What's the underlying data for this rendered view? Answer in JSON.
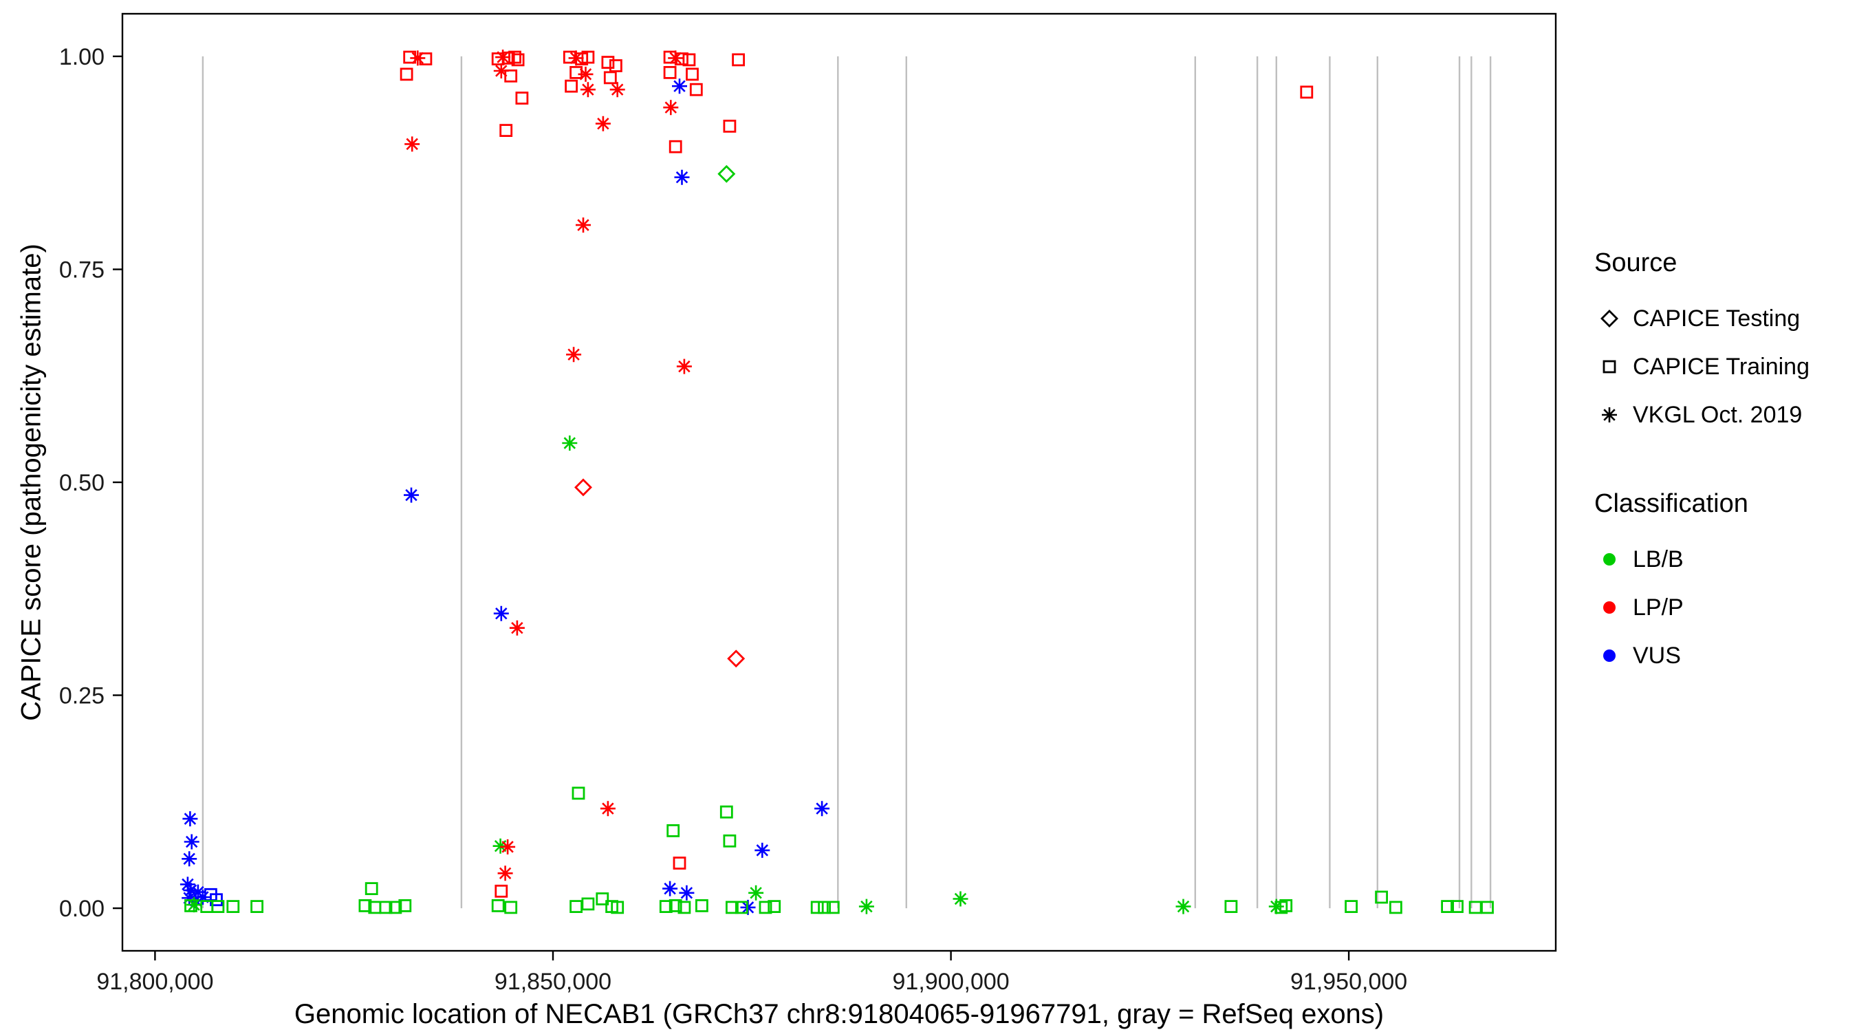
{
  "chart_data": {
    "type": "scatter",
    "title": "",
    "xlabel": "Genomic location of NECAB1 (GRCh37 chr8:91804065-91967791, gray = RefSeq exons)",
    "ylabel": "CAPICE score (pathogenicity estimate)",
    "xlim": [
      91795900,
      91976000
    ],
    "ylim": [
      -0.05,
      1.05
    ],
    "grid": false,
    "legend_position": "right",
    "xticks": [
      {
        "value": 91800000,
        "label": "91,800,000"
      },
      {
        "value": 91850000,
        "label": "91,850,000"
      },
      {
        "value": 91900000,
        "label": "91,900,000"
      },
      {
        "value": 91950000,
        "label": "91,950,000"
      }
    ],
    "yticks": [
      {
        "value": 0.0,
        "label": "0.00"
      },
      {
        "value": 0.25,
        "label": "0.25"
      },
      {
        "value": 0.5,
        "label": "0.50"
      },
      {
        "value": 0.75,
        "label": "0.75"
      },
      {
        "value": 1.0,
        "label": "1.00"
      }
    ],
    "exons": [
      91806000,
      91838500,
      91885800,
      91894400,
      91930700,
      91938500,
      91940900,
      91947600,
      91953600,
      91963900,
      91965400,
      91967800
    ],
    "colors": {
      "lbb": "#00CC00",
      "lpp": "#FF0000",
      "vus": "#0000FF",
      "exon": "#BFBFBF",
      "axis": "#000000",
      "tick_label": "#1a1a1a"
    },
    "shapes": {
      "test": "diamond",
      "train": "square",
      "vkgl": "asterisk"
    },
    "legend_source": {
      "title": "Source",
      "items": [
        {
          "label": "CAPICE Testing",
          "shape": "diamond"
        },
        {
          "label": "CAPICE Training",
          "shape": "square"
        },
        {
          "label": "VKGL Oct. 2019",
          "shape": "asterisk"
        }
      ]
    },
    "legend_classification": {
      "title": "Classification",
      "items": [
        {
          "label": "LB/B",
          "shape": "circle",
          "color": "lbb"
        },
        {
          "label": "LP/P",
          "shape": "circle",
          "color": "lpp"
        },
        {
          "label": "VUS",
          "shape": "circle",
          "color": "vus"
        }
      ]
    },
    "points": [
      [
        91804400,
        0.105,
        "vkgl",
        "vus"
      ],
      [
        91804600,
        0.078,
        "vkgl",
        "vus"
      ],
      [
        91804300,
        0.058,
        "vkgl",
        "vus"
      ],
      [
        91804100,
        0.028,
        "vkgl",
        "vus"
      ],
      [
        91804500,
        0.021,
        "vkgl",
        "vus"
      ],
      [
        91805400,
        0.019,
        "vkgl",
        "vus"
      ],
      [
        91804300,
        0.012,
        "vkgl",
        "vus"
      ],
      [
        91805100,
        0.009,
        "vkgl",
        "vus"
      ],
      [
        91806000,
        0.013,
        "vkgl",
        "vus"
      ],
      [
        91807000,
        0.016,
        "train",
        "vus"
      ],
      [
        91807700,
        0.01,
        "train",
        "vus"
      ],
      [
        91804500,
        0.003,
        "train",
        "lbb"
      ],
      [
        91806500,
        0.002,
        "train",
        "lbb"
      ],
      [
        91807900,
        0.002,
        "train",
        "lbb"
      ],
      [
        91809800,
        0.002,
        "train",
        "lbb"
      ],
      [
        91812800,
        0.002,
        "train",
        "lbb"
      ],
      [
        91804900,
        0.004,
        "vkgl",
        "lbb"
      ],
      [
        91832000,
        0.999,
        "train",
        "lpp"
      ],
      [
        91833000,
        0.998,
        "vkgl",
        "lpp"
      ],
      [
        91834000,
        0.997,
        "train",
        "lpp"
      ],
      [
        91831600,
        0.979,
        "train",
        "lpp"
      ],
      [
        91832300,
        0.897,
        "vkgl",
        "lpp"
      ],
      [
        91832200,
        0.485,
        "vkgl",
        "vus"
      ],
      [
        91827200,
        0.023,
        "train",
        "lbb"
      ],
      [
        91826400,
        0.003,
        "train",
        "lbb"
      ],
      [
        91827600,
        0.001,
        "train",
        "lbb"
      ],
      [
        91829000,
        0.001,
        "train",
        "lbb"
      ],
      [
        91830200,
        0.001,
        "train",
        "lbb"
      ],
      [
        91831400,
        0.003,
        "train",
        "lbb"
      ],
      [
        91843100,
        0.997,
        "train",
        "lpp"
      ],
      [
        91843700,
        0.999,
        "vkgl",
        "lpp"
      ],
      [
        91844400,
        0.998,
        "train",
        "lpp"
      ],
      [
        91845200,
        0.999,
        "train",
        "lpp"
      ],
      [
        91843500,
        0.983,
        "vkgl",
        "lpp"
      ],
      [
        91844700,
        0.977,
        "train",
        "lpp"
      ],
      [
        91845600,
        0.996,
        "train",
        "lpp"
      ],
      [
        91846100,
        0.951,
        "train",
        "lpp"
      ],
      [
        91844100,
        0.913,
        "train",
        "lpp"
      ],
      [
        91843500,
        0.346,
        "vkgl",
        "vus"
      ],
      [
        91845500,
        0.329,
        "vkgl",
        "lpp"
      ],
      [
        91843400,
        0.073,
        "vkgl",
        "lbb"
      ],
      [
        91844300,
        0.072,
        "vkgl",
        "lpp"
      ],
      [
        91844000,
        0.041,
        "vkgl",
        "lpp"
      ],
      [
        91843500,
        0.02,
        "train",
        "lpp"
      ],
      [
        91843100,
        0.003,
        "train",
        "lbb"
      ],
      [
        91844700,
        0.001,
        "train",
        "lbb"
      ],
      [
        91852100,
        0.999,
        "train",
        "lpp"
      ],
      [
        91852900,
        0.998,
        "vkgl",
        "lpp"
      ],
      [
        91853600,
        0.997,
        "train",
        "lpp"
      ],
      [
        91854400,
        0.999,
        "train",
        "lpp"
      ],
      [
        91852900,
        0.981,
        "train",
        "lpp"
      ],
      [
        91854100,
        0.979,
        "vkgl",
        "lpp"
      ],
      [
        91852300,
        0.965,
        "train",
        "lpp"
      ],
      [
        91854400,
        0.961,
        "vkgl",
        "lpp"
      ],
      [
        91856900,
        0.993,
        "train",
        "lpp"
      ],
      [
        91857900,
        0.989,
        "train",
        "lpp"
      ],
      [
        91857200,
        0.975,
        "train",
        "lpp"
      ],
      [
        91858100,
        0.961,
        "vkgl",
        "lpp"
      ],
      [
        91856300,
        0.921,
        "vkgl",
        "lpp"
      ],
      [
        91853800,
        0.802,
        "vkgl",
        "lpp"
      ],
      [
        91852600,
        0.65,
        "vkgl",
        "lpp"
      ],
      [
        91852100,
        0.546,
        "vkgl",
        "lbb"
      ],
      [
        91853800,
        0.494,
        "test",
        "lpp"
      ],
      [
        91853200,
        0.135,
        "train",
        "lbb"
      ],
      [
        91856900,
        0.117,
        "vkgl",
        "lpp"
      ],
      [
        91852900,
        0.002,
        "train",
        "lbb"
      ],
      [
        91854400,
        0.005,
        "train",
        "lbb"
      ],
      [
        91856200,
        0.011,
        "train",
        "lbb"
      ],
      [
        91857400,
        0.002,
        "train",
        "lbb"
      ],
      [
        91858100,
        0.001,
        "train",
        "lbb"
      ],
      [
        91864700,
        0.999,
        "train",
        "lpp"
      ],
      [
        91865400,
        0.998,
        "vkgl",
        "lpp"
      ],
      [
        91866200,
        0.997,
        "train",
        "lpp"
      ],
      [
        91867100,
        0.996,
        "train",
        "lpp"
      ],
      [
        91864700,
        0.981,
        "train",
        "lpp"
      ],
      [
        91867500,
        0.979,
        "train",
        "lpp"
      ],
      [
        91865900,
        0.965,
        "vkgl",
        "vus"
      ],
      [
        91868000,
        0.961,
        "train",
        "lpp"
      ],
      [
        91864800,
        0.94,
        "vkgl",
        "lpp"
      ],
      [
        91865400,
        0.894,
        "train",
        "lpp"
      ],
      [
        91866200,
        0.858,
        "vkgl",
        "vus"
      ],
      [
        91866500,
        0.636,
        "vkgl",
        "lpp"
      ],
      [
        91865100,
        0.091,
        "train",
        "lbb"
      ],
      [
        91865900,
        0.053,
        "train",
        "lpp"
      ],
      [
        91864700,
        0.023,
        "vkgl",
        "vus"
      ],
      [
        91866800,
        0.018,
        "vkgl",
        "vus"
      ],
      [
        91864200,
        0.002,
        "train",
        "lbb"
      ],
      [
        91865400,
        0.003,
        "train",
        "lbb"
      ],
      [
        91866500,
        0.001,
        "train",
        "lbb"
      ],
      [
        91868700,
        0.003,
        "train",
        "lbb"
      ],
      [
        91871800,
        0.862,
        "test",
        "lbb"
      ],
      [
        91873300,
        0.996,
        "train",
        "lpp"
      ],
      [
        91872200,
        0.918,
        "train",
        "lpp"
      ],
      [
        91873000,
        0.293,
        "test",
        "lpp"
      ],
      [
        91871800,
        0.113,
        "train",
        "lbb"
      ],
      [
        91872200,
        0.079,
        "train",
        "lbb"
      ],
      [
        91876300,
        0.068,
        "vkgl",
        "vus"
      ],
      [
        91875500,
        0.018,
        "vkgl",
        "lbb"
      ],
      [
        91874500,
        0.001,
        "vkgl",
        "vus"
      ],
      [
        91872500,
        0.001,
        "train",
        "lbb"
      ],
      [
        91873700,
        0.001,
        "train",
        "lbb"
      ],
      [
        91876700,
        0.001,
        "train",
        "lbb"
      ],
      [
        91877800,
        0.002,
        "train",
        "lbb"
      ],
      [
        91883800,
        0.117,
        "vkgl",
        "vus"
      ],
      [
        91883200,
        0.001,
        "train",
        "lbb"
      ],
      [
        91884100,
        0.001,
        "train",
        "lbb"
      ],
      [
        91885200,
        0.001,
        "train",
        "lbb"
      ],
      [
        91889400,
        0.002,
        "vkgl",
        "lbb"
      ],
      [
        91901200,
        0.011,
        "vkgl",
        "lbb"
      ],
      [
        91929200,
        0.002,
        "vkgl",
        "lbb"
      ],
      [
        91935200,
        0.002,
        "train",
        "lbb"
      ],
      [
        91940900,
        0.002,
        "vkgl",
        "lbb"
      ],
      [
        91941500,
        0.001,
        "train",
        "lbb"
      ],
      [
        91942100,
        0.003,
        "train",
        "lbb"
      ],
      [
        91944700,
        0.958,
        "train",
        "lpp"
      ],
      [
        91950300,
        0.002,
        "train",
        "lbb"
      ],
      [
        91954100,
        0.013,
        "train",
        "lbb"
      ],
      [
        91955900,
        0.001,
        "train",
        "lbb"
      ],
      [
        91962400,
        0.002,
        "train",
        "lbb"
      ],
      [
        91963600,
        0.002,
        "train",
        "lbb"
      ],
      [
        91965900,
        0.001,
        "train",
        "lbb"
      ],
      [
        91967400,
        0.001,
        "train",
        "lbb"
      ]
    ]
  }
}
